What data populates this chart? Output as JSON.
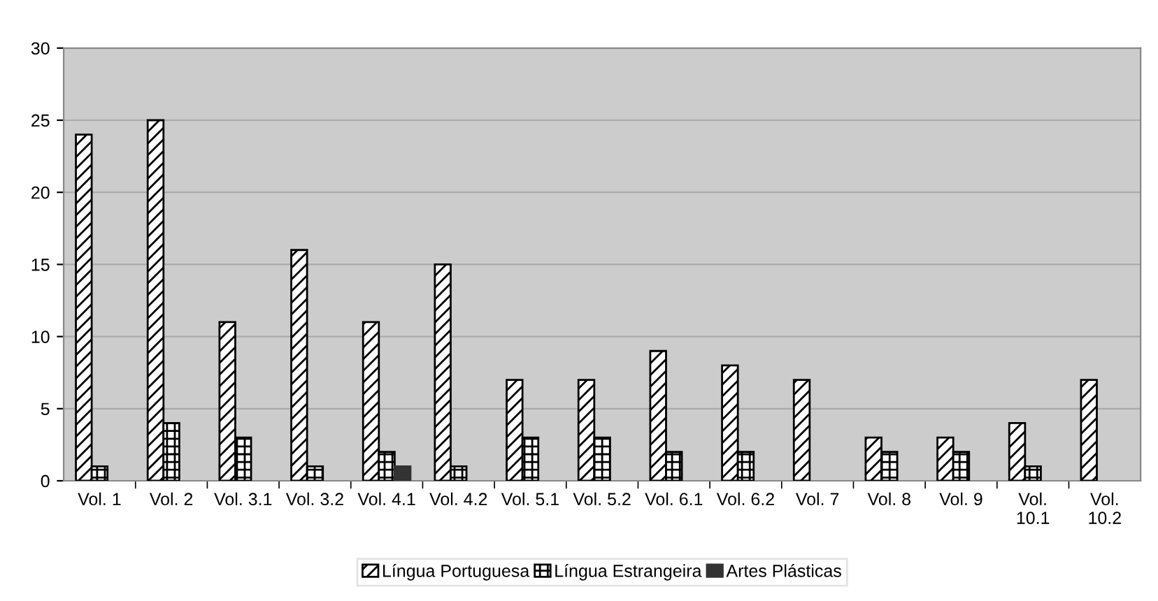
{
  "chart_data": {
    "type": "bar",
    "categories": [
      "Vol. 1",
      "Vol. 2",
      "Vol. 3.1",
      "Vol. 3.2",
      "Vol. 4.1",
      "Vol. 4.2",
      "Vol. 5.1",
      "Vol. 5.2",
      "Vol. 6.1",
      "Vol. 6.2",
      "Vol. 7",
      "Vol. 8",
      "Vol. 9",
      "Vol. 10.1",
      "Vol. 10.2"
    ],
    "series": [
      {
        "name": "Língua Portuguesa",
        "color": "#000000",
        "values": [
          24,
          25,
          11,
          16,
          11,
          15,
          7,
          7,
          9,
          8,
          7,
          3,
          3,
          4,
          7
        ]
      },
      {
        "name": "Língua Estrangeira",
        "color": "#000000",
        "values": [
          1,
          4,
          3,
          1,
          2,
          1,
          3,
          3,
          2,
          2,
          null,
          2,
          2,
          1,
          null
        ]
      },
      {
        "name": "Artes Plásticas",
        "color": "#333333",
        "values": [
          null,
          null,
          null,
          null,
          1,
          null,
          null,
          null,
          null,
          null,
          null,
          null,
          null,
          null,
          null
        ]
      }
    ],
    "ylim": [
      0,
      30
    ],
    "yticks": [
      0,
      5,
      10,
      15,
      20,
      25,
      30
    ],
    "grid": "y",
    "legend": "bottom"
  }
}
